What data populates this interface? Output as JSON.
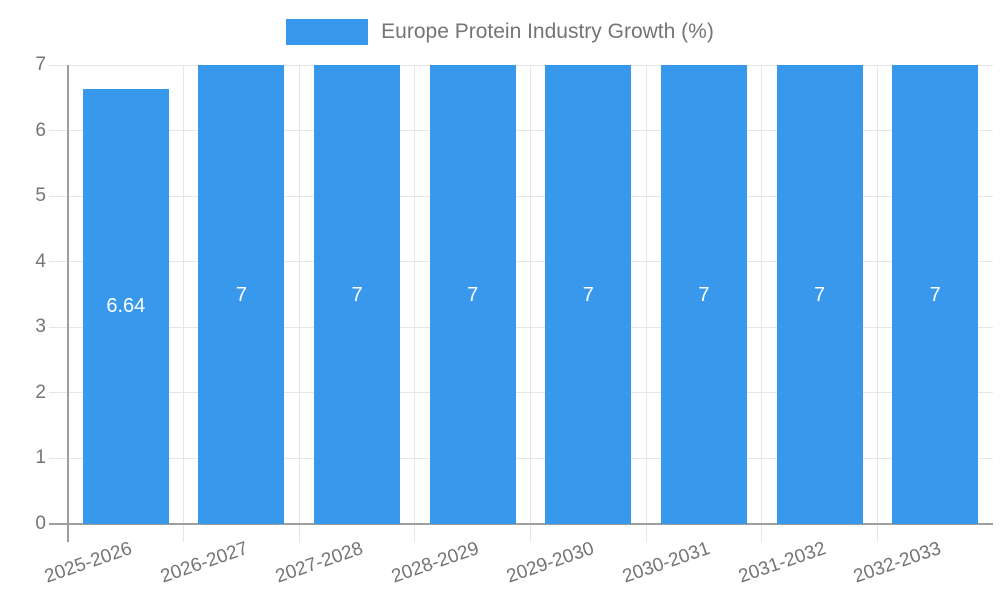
{
  "legend": {
    "label": "Europe Protein Industry Growth (%)"
  },
  "chart_data": {
    "type": "bar",
    "title": "Europe Protein Industry Growth (%)",
    "legend_entries": [
      "Europe Protein Industry Growth (%)"
    ],
    "legend_position": "top",
    "categories": [
      "2025-2026",
      "2026-2027",
      "2027-2028",
      "2028-2029",
      "2029-2030",
      "2030-2031",
      "2031-2032",
      "2032-2033"
    ],
    "values": [
      6.64,
      7,
      7,
      7,
      7,
      7,
      7,
      7
    ],
    "value_labels": [
      "6.64",
      "7",
      "7",
      "7",
      "7",
      "7",
      "7",
      "7"
    ],
    "xlabel": "",
    "ylabel": "",
    "ylim": [
      0,
      7
    ],
    "yticks": [
      0,
      1,
      2,
      3,
      4,
      5,
      6,
      7
    ],
    "grid": true,
    "x_tick_rotation_deg": -19,
    "colors": {
      "bar": "#3899ec",
      "grid": "#e6e6e6",
      "axis": "#9e9e9e",
      "tick_text": "#757575",
      "legend_text": "#757575",
      "value_label": "#ffffff",
      "background": "#ffffff"
    }
  }
}
